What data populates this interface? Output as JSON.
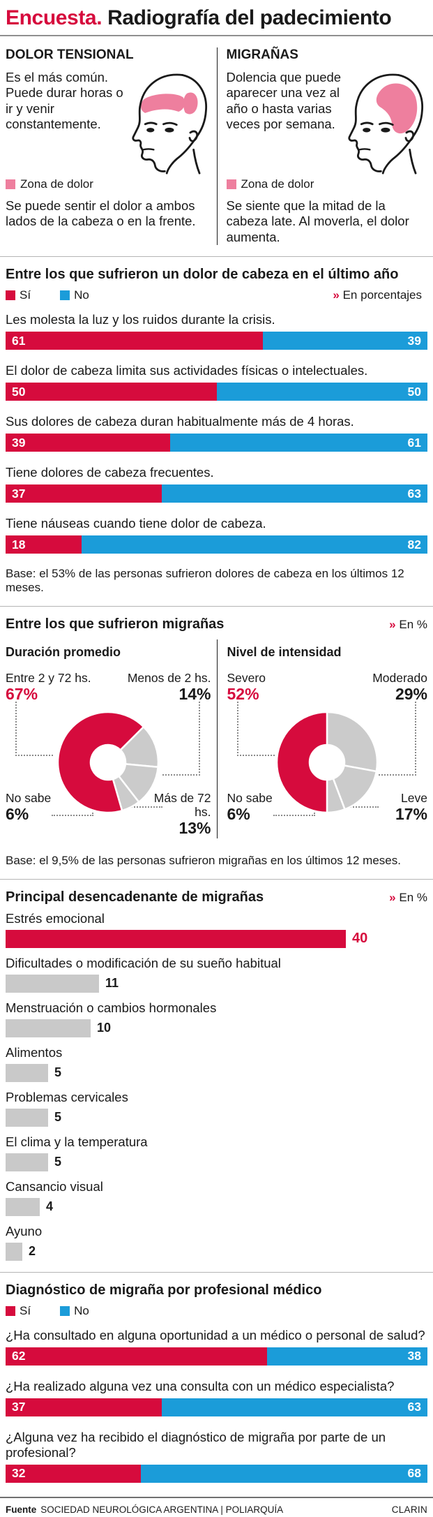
{
  "title": {
    "kicker": "Encuesta.",
    "rest": "Radiografía del padecimiento"
  },
  "colors": {
    "red": "#d60b3d",
    "blue": "#1b9cd9",
    "pink": "#ee7f9e",
    "gray": "#c9c9c9"
  },
  "pain_types": {
    "tension": {
      "heading": "DOLOR TENSIONAL",
      "description": "Es el más común. Puede durar horas o ir y venir constantemente.",
      "legend": "Zona de dolor",
      "note": "Se puede sentir el dolor a ambos lados de la cabeza o en la frente."
    },
    "migraine": {
      "heading": "MIGRAÑAS",
      "description": "Dolencia que puede aparecer una vez al año o hasta varias veces por semana.",
      "legend": "Zona de dolor",
      "note": "Se siente que la mitad de la cabeza late. Al moverla, el dolor aumenta."
    }
  },
  "sections": {
    "headache": {
      "legend_yes": "Sí",
      "legend_no": "No",
      "unit_chevron": "»",
      "unit_text": "En porcentajes"
    },
    "migraine": {
      "heading": "Entre los que sufrieron migrañas",
      "unit_chevron": "»",
      "unit_text": "En %",
      "base": "Base: el 9,5% de las personas sufrieron migrañas en los últimos 12 meses."
    },
    "triggers": {
      "unit_chevron": "»",
      "unit_text": "En %"
    },
    "diagnosis": {
      "legend_yes": "Sí",
      "legend_no": "No"
    }
  },
  "footer": {
    "source_label": "Fuente",
    "source": "SOCIEDAD NEUROLÓGICA ARGENTINA | POLIARQUÍA",
    "brand": "CLARIN"
  },
  "chart_data": [
    {
      "type": "bar",
      "variant": "stacked-horizontal",
      "title": "Entre los que sufrieron un dolor de cabeza en el último año",
      "unit": "En porcentajes",
      "series_names": [
        "Sí",
        "No"
      ],
      "items": [
        {
          "label": "Les molesta la luz y los ruidos durante la crisis.",
          "si": 61,
          "no": 39
        },
        {
          "label": "El dolor de cabeza limita sus actividades físicas o intelectuales.",
          "si": 50,
          "no": 50
        },
        {
          "label": "Sus dolores de cabeza duran habitualmente más de 4 horas.",
          "si": 39,
          "no": 61
        },
        {
          "label": "Tiene dolores de cabeza frecuentes.",
          "si": 37,
          "no": 63
        },
        {
          "label": "Tiene náuseas cuando tiene dolor de cabeza.",
          "si": 18,
          "no": 82
        }
      ],
      "base": "Base: el 53% de las personas sufrieron dolores de cabeza en los últimos 12 meses."
    },
    {
      "type": "pie",
      "variant": "donut",
      "title": "Duración promedio",
      "rotate": 45,
      "slices": [
        {
          "label": "Menos de 2 hs.",
          "value": 14,
          "color": "#cbcbcb"
        },
        {
          "label": "Más de 72 hs.",
          "value": 13,
          "color": "#cbcbcb"
        },
        {
          "label": "No sabe",
          "value": 6,
          "color": "#cbcbcb"
        },
        {
          "label": "Entre 2 y 72 hs.",
          "value": 67,
          "color": "#d60b3d"
        }
      ],
      "corners": {
        "tl": {
          "label": "Entre 2 y 72 hs.",
          "pct": "67%"
        },
        "tr": {
          "label": "Menos de 2 hs.",
          "pct": "14%"
        },
        "bl": {
          "label": "No sabe",
          "pct": "6%"
        },
        "br": {
          "label": "Más de 72 hs.",
          "pct": "13%"
        }
      }
    },
    {
      "type": "pie",
      "variant": "donut",
      "title": "Nivel de intensidad",
      "rotate": 0,
      "slices": [
        {
          "label": "Moderado",
          "value": 29,
          "color": "#cbcbcb"
        },
        {
          "label": "Leve",
          "value": 17,
          "color": "#cbcbcb"
        },
        {
          "label": "No sabe",
          "value": 6,
          "color": "#cbcbcb"
        },
        {
          "label": "Severo",
          "value": 52,
          "color": "#d60b3d"
        }
      ],
      "corners": {
        "tl": {
          "label": "Severo",
          "pct": "52%"
        },
        "tr": {
          "label": "Moderado",
          "pct": "29%"
        },
        "bl": {
          "label": "No sabe",
          "pct": "6%"
        },
        "br": {
          "label": "Leve",
          "pct": "17%"
        }
      }
    },
    {
      "type": "bar",
      "variant": "horizontal",
      "title": "Principal desencadenante de migrañas",
      "unit": "En %",
      "max": 40,
      "items": [
        {
          "label": "Estrés emocional",
          "value": 40,
          "highlight": true
        },
        {
          "label": "Dificultades o modificación de su sueño habitual",
          "value": 11
        },
        {
          "label": "Menstruación o cambios hormonales",
          "value": 10
        },
        {
          "label": "Alimentos",
          "value": 5
        },
        {
          "label": "Problemas cervicales",
          "value": 5
        },
        {
          "label": "El clima y la temperatura",
          "value": 5
        },
        {
          "label": "Cansancio visual",
          "value": 4
        },
        {
          "label": "Ayuno",
          "value": 2
        }
      ]
    },
    {
      "type": "bar",
      "variant": "stacked-horizontal",
      "title": "Diagnóstico de migraña por profesional médico",
      "series_names": [
        "Sí",
        "No"
      ],
      "items": [
        {
          "label": "¿Ha consultado en alguna oportunidad a un médico o personal de salud?",
          "si": 62,
          "no": 38
        },
        {
          "label": "¿Ha realizado alguna vez una consulta con un médico especialista?",
          "si": 37,
          "no": 63
        },
        {
          "label": "¿Alguna vez ha recibido el diagnóstico de migraña por parte de un profesional?",
          "si": 32,
          "no": 68
        }
      ]
    }
  ]
}
